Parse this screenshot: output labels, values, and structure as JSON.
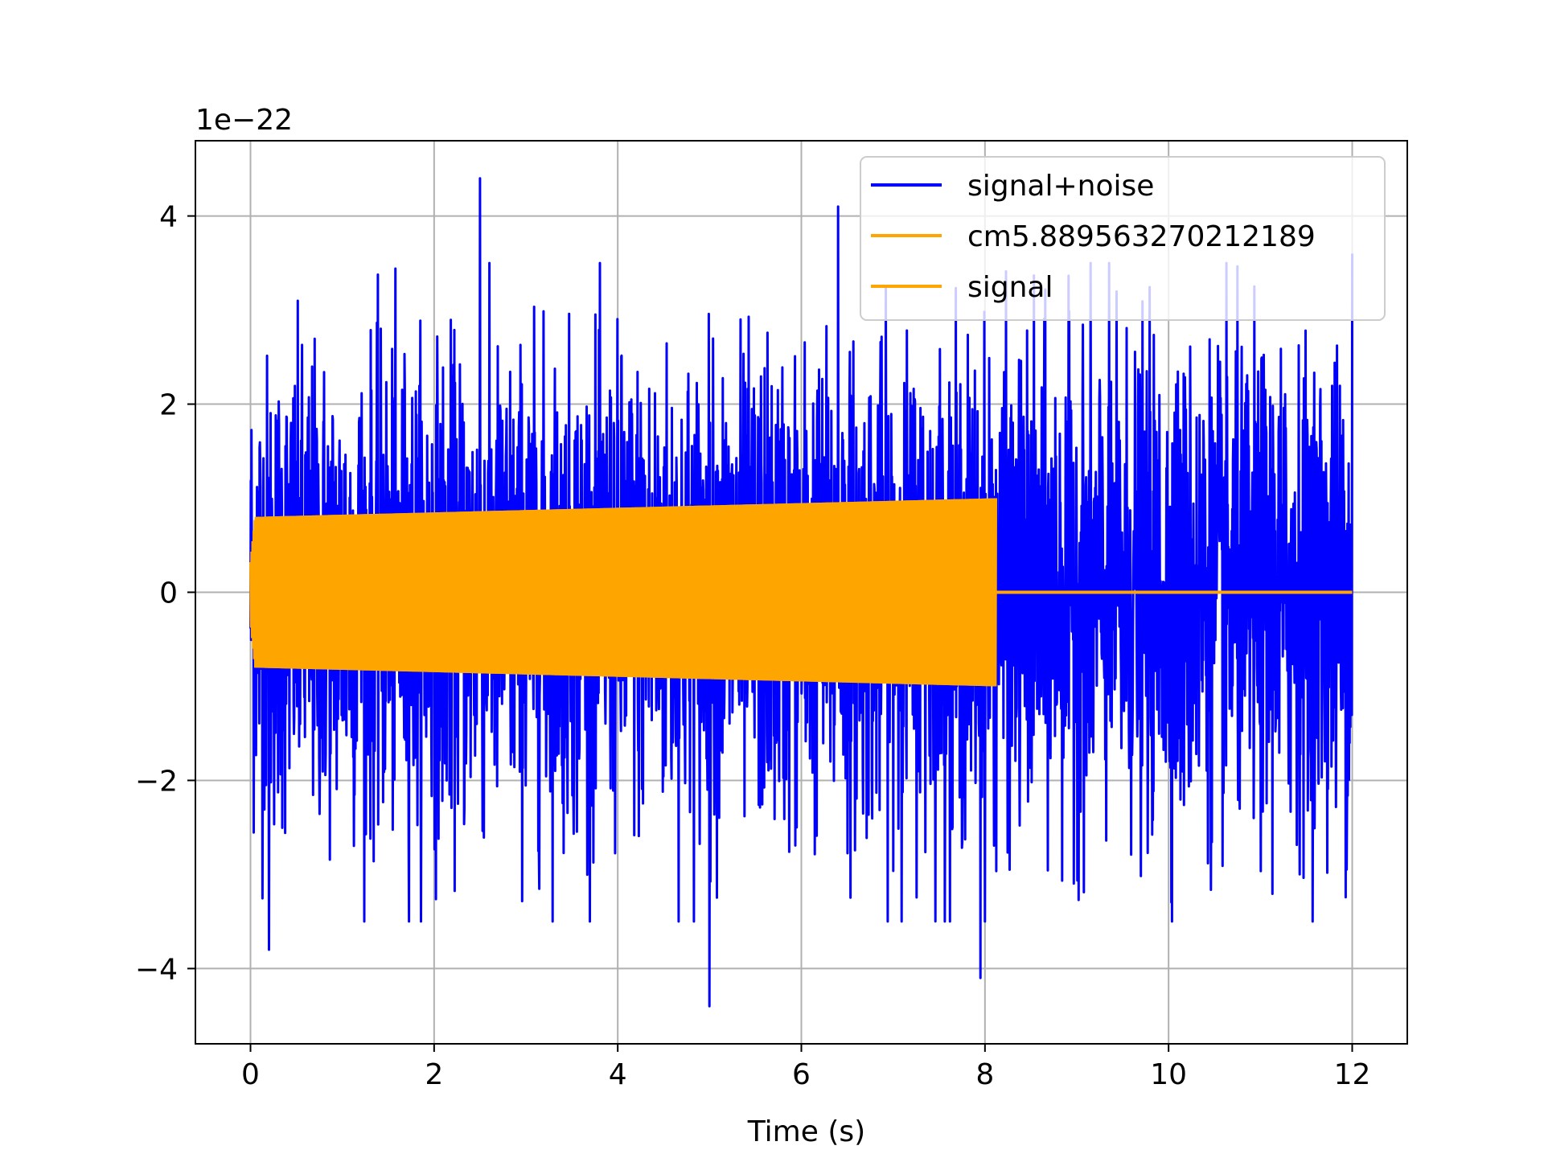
{
  "chart_data": {
    "type": "line",
    "title": "",
    "xlabel": "Time (s)",
    "ylabel": "",
    "y_offset_label": "1e−22",
    "xlim": [
      -0.6,
      12.6
    ],
    "ylim": [
      -4.8,
      4.8
    ],
    "xticks": [
      0,
      2,
      4,
      6,
      8,
      10,
      12
    ],
    "yticks": [
      -4,
      -2,
      0,
      2,
      4
    ],
    "ytick_labels": [
      "−4",
      "−2",
      "0",
      "2",
      "4"
    ],
    "grid": true,
    "legend_position": "top-right",
    "series": [
      {
        "name": "signal+noise",
        "color": "#0000ff",
        "x_range": [
          0,
          12
        ],
        "typical_envelope": [
          -2.0,
          2.0
        ],
        "noticeable_peaks": [
          {
            "x": 2.5,
            "y": 4.4
          },
          {
            "x": 6.4,
            "y": 4.1
          },
          {
            "x": 12.0,
            "y": 3.6
          },
          {
            "x": 5.0,
            "y": -4.4
          },
          {
            "x": 7.95,
            "y": -4.1
          },
          {
            "x": 0.2,
            "y": -3.8
          }
        ]
      },
      {
        "name": "cm5.889563270212189",
        "color": "#ffa500",
        "x_range": [
          0,
          8.12
        ],
        "amplitude_start": 0.8,
        "amplitude_end": 1.0
      },
      {
        "name": "signal",
        "color": "#ffa500",
        "x": [
          8.12,
          12.0
        ],
        "y": [
          0,
          0
        ]
      }
    ]
  }
}
